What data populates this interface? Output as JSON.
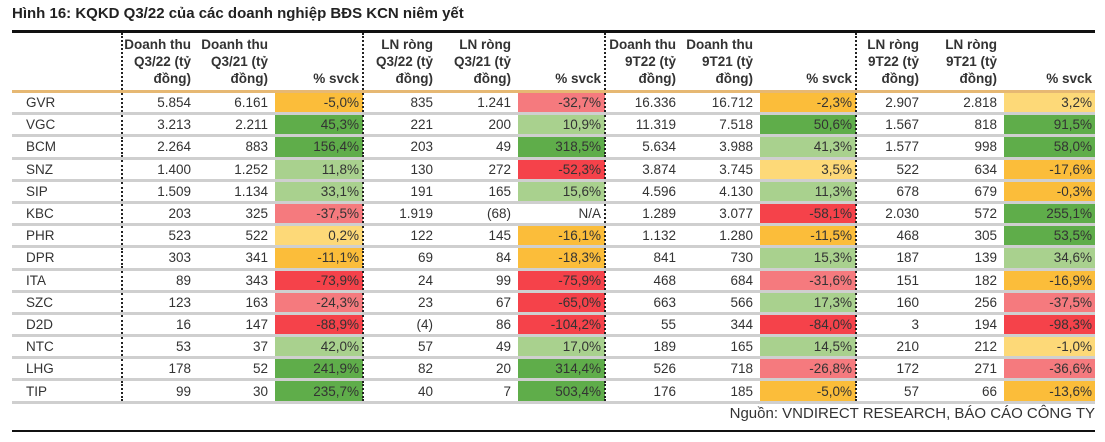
{
  "title": "Hình 16: KQKD Q3/22 của các doanh nghiệp BĐS KCN niêm yết",
  "source": "Nguồn: VNDIRECT RESEARCH, BÁO CÁO CÔNG TY",
  "colors": {
    "dkgreen": "#5fad4a",
    "ltgreen": "#a9d18e",
    "orange": "#fbbd3a",
    "ltyellow": "#fdd978",
    "red": "#f5424a",
    "pink": "#f57a7e",
    "none": "#ffffff"
  },
  "headers": [
    "",
    "Doanh thu Q3/22 (tỷ đồng)",
    "Doanh thu Q3/21 (tỷ đồng)",
    "% svck",
    "LN ròng Q3/22 (tỷ đồng)",
    "LN ròng Q3/21 (tỷ đồng)",
    "% svck",
    "Doanh thu 9T22 (tỷ đồng)",
    "Doanh thu 9T21 (tỷ đồng)",
    "% svck",
    "LN ròng 9T22 (tỷ đồng)",
    "LN ròng 9T21 (tỷ đồng)",
    "% svck"
  ],
  "rows": [
    {
      "name": "GVR",
      "v": [
        "5.854",
        "6.161",
        "-5,0%",
        "835",
        "1.241",
        "-32,7%",
        "16.336",
        "16.712",
        "-2,3%",
        "2.907",
        "2.818",
        "3,2%"
      ],
      "c": [
        "orange",
        "pink",
        "orange",
        "ltyellow"
      ]
    },
    {
      "name": "VGC",
      "v": [
        "3.213",
        "2.211",
        "45,3%",
        "221",
        "200",
        "10,9%",
        "11.319",
        "7.518",
        "50,6%",
        "1.567",
        "818",
        "91,5%"
      ],
      "c": [
        "dkgreen",
        "ltgreen",
        "dkgreen",
        "dkgreen"
      ]
    },
    {
      "name": "BCM",
      "v": [
        "2.264",
        "883",
        "156,4%",
        "203",
        "49",
        "318,5%",
        "5.634",
        "3.988",
        "41,3%",
        "1.577",
        "998",
        "58,0%"
      ],
      "c": [
        "dkgreen",
        "dkgreen",
        "ltgreen",
        "dkgreen"
      ]
    },
    {
      "name": "SNZ",
      "v": [
        "1.400",
        "1.252",
        "11,8%",
        "130",
        "272",
        "-52,3%",
        "3.874",
        "3.745",
        "3,5%",
        "522",
        "634",
        "-17,6%"
      ],
      "c": [
        "ltgreen",
        "red",
        "ltyellow",
        "orange"
      ]
    },
    {
      "name": "SIP",
      "v": [
        "1.509",
        "1.134",
        "33,1%",
        "191",
        "165",
        "15,6%",
        "4.596",
        "4.130",
        "11,3%",
        "678",
        "679",
        "-0,3%"
      ],
      "c": [
        "ltgreen",
        "ltgreen",
        "ltgreen",
        "orange"
      ]
    },
    {
      "name": "KBC",
      "v": [
        "203",
        "325",
        "-37,5%",
        "1.919",
        "(68)",
        "N/A",
        "1.289",
        "3.077",
        "-58,1%",
        "2.030",
        "572",
        "255,1%"
      ],
      "c": [
        "pink",
        "none",
        "red",
        "dkgreen"
      ]
    },
    {
      "name": "PHR",
      "v": [
        "523",
        "522",
        "0,2%",
        "122",
        "145",
        "-16,1%",
        "1.132",
        "1.280",
        "-11,5%",
        "468",
        "305",
        "53,5%"
      ],
      "c": [
        "ltyellow",
        "orange",
        "orange",
        "dkgreen"
      ]
    },
    {
      "name": "DPR",
      "v": [
        "303",
        "341",
        "-11,1%",
        "69",
        "84",
        "-18,3%",
        "841",
        "730",
        "15,3%",
        "187",
        "139",
        "34,6%"
      ],
      "c": [
        "orange",
        "orange",
        "ltgreen",
        "ltgreen"
      ]
    },
    {
      "name": "ITA",
      "v": [
        "89",
        "343",
        "-73,9%",
        "24",
        "99",
        "-75,9%",
        "468",
        "684",
        "-31,6%",
        "151",
        "182",
        "-16,9%"
      ],
      "c": [
        "red",
        "red",
        "pink",
        "orange"
      ]
    },
    {
      "name": "SZC",
      "v": [
        "123",
        "163",
        "-24,3%",
        "23",
        "67",
        "-65,0%",
        "663",
        "566",
        "17,3%",
        "160",
        "256",
        "-37,5%"
      ],
      "c": [
        "pink",
        "red",
        "ltgreen",
        "pink"
      ]
    },
    {
      "name": "D2D",
      "v": [
        "16",
        "147",
        "-88,9%",
        "(4)",
        "86",
        "-104,2%",
        "55",
        "344",
        "-84,0%",
        "3",
        "194",
        "-98,3%"
      ],
      "c": [
        "red",
        "red",
        "red",
        "red"
      ]
    },
    {
      "name": "NTC",
      "v": [
        "53",
        "37",
        "42,0%",
        "57",
        "49",
        "17,0%",
        "189",
        "165",
        "14,5%",
        "210",
        "212",
        "-1,0%"
      ],
      "c": [
        "ltgreen",
        "ltgreen",
        "ltgreen",
        "ltyellow"
      ]
    },
    {
      "name": "LHG",
      "v": [
        "178",
        "52",
        "241,9%",
        "82",
        "20",
        "314,4%",
        "526",
        "718",
        "-26,8%",
        "172",
        "271",
        "-36,6%"
      ],
      "c": [
        "dkgreen",
        "dkgreen",
        "pink",
        "pink"
      ]
    },
    {
      "name": "TIP",
      "v": [
        "99",
        "30",
        "235,7%",
        "40",
        "7",
        "503,4%",
        "176",
        "185",
        "-5,0%",
        "57",
        "66",
        "-13,6%"
      ],
      "c": [
        "dkgreen",
        "dkgreen",
        "orange",
        "orange"
      ]
    }
  ]
}
